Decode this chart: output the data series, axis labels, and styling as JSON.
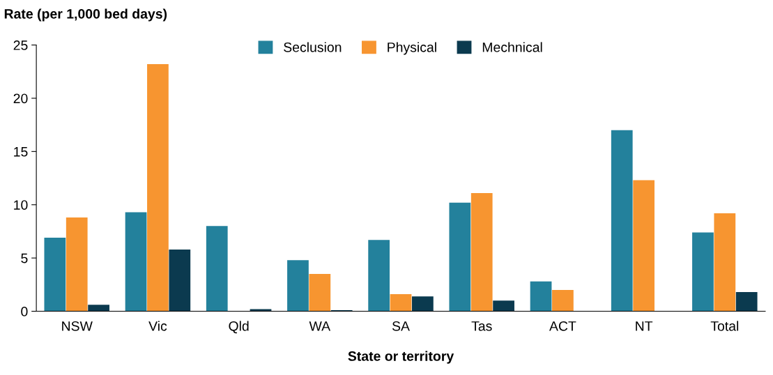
{
  "chart_data": {
    "type": "bar",
    "ylabel": "Rate (per 1,000 bed days)",
    "xlabel": "State or territory",
    "categories": [
      "NSW",
      "Vic",
      "Qld",
      "WA",
      "SA",
      "Tas",
      "ACT",
      "NT",
      "Total"
    ],
    "series": [
      {
        "name": "Seclusion",
        "color": "#23819c",
        "values": [
          6.9,
          9.3,
          8.0,
          4.8,
          6.7,
          10.2,
          2.8,
          17.0,
          7.4
        ]
      },
      {
        "name": "Physical",
        "color": "#f79530",
        "values": [
          8.8,
          23.2,
          null,
          3.5,
          1.6,
          11.1,
          2.0,
          12.3,
          9.2
        ]
      },
      {
        "name": "Mechnical",
        "color": "#0b3a4f",
        "values": [
          0.6,
          5.8,
          0.2,
          0.1,
          1.4,
          1.0,
          null,
          null,
          1.8
        ]
      }
    ],
    "ylim": [
      0,
      25
    ],
    "yticks": [
      0,
      5,
      10,
      15,
      20,
      25
    ],
    "grid": false,
    "legend": "top"
  }
}
